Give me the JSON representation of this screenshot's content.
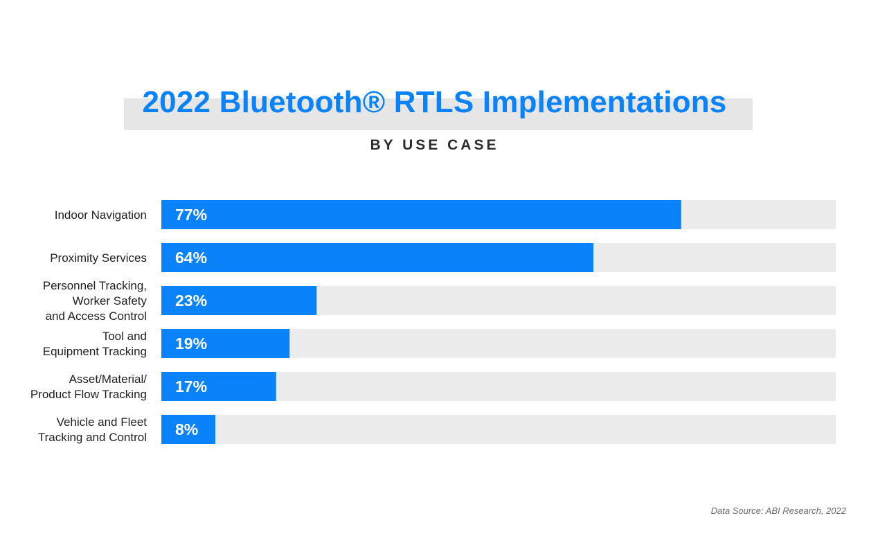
{
  "chart_data": {
    "type": "bar",
    "orientation": "horizontal",
    "title": "2022 Bluetooth® RTLS Implementations",
    "subtitle": "BY USE CASE",
    "categories": [
      [
        "Indoor Navigation"
      ],
      [
        "Proximity Services"
      ],
      [
        "Personnel Tracking,",
        "Worker Safety",
        "and Access Control"
      ],
      [
        "Tool and",
        "Equipment Tracking"
      ],
      [
        "Asset/Material/",
        "Product Flow Tracking"
      ],
      [
        "Vehicle and Fleet",
        "Tracking and Control"
      ]
    ],
    "values": [
      77,
      64,
      23,
      19,
      17,
      8
    ],
    "value_labels": [
      "77%",
      "64%",
      "23%",
      "19%",
      "17%",
      "8%"
    ],
    "xlim": [
      0,
      100
    ],
    "grid": false,
    "legend": "none",
    "colors": {
      "bar": "#0a82fa",
      "track": "#ececec",
      "title": "#0a82fa",
      "title_band": "#e6e6e6"
    }
  },
  "source": "Data Source: ABI Research, 2022"
}
